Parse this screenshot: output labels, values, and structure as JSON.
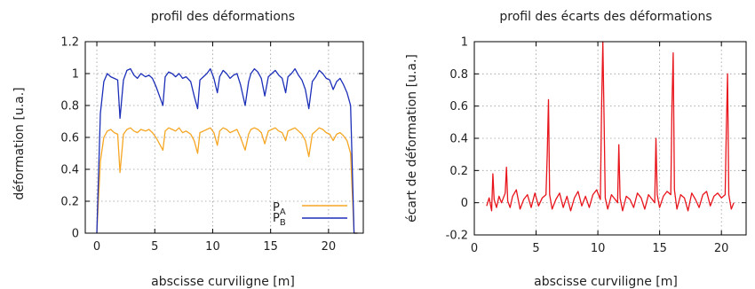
{
  "chart_data": [
    {
      "type": "line",
      "title": "profil des déformations",
      "xlabel": "abscisse curviligne [m]",
      "ylabel": "déformation [u.a.]",
      "xlim": [
        -1,
        23
      ],
      "ylim": [
        0,
        1.2
      ],
      "xticks": [
        0,
        5,
        10,
        15,
        20
      ],
      "yticks": [
        0,
        0.2,
        0.4,
        0.6,
        0.8,
        1,
        1.2
      ],
      "ytick_labels": [
        "0",
        "0.2",
        "0.4",
        "0.6",
        "0.8",
        "1",
        "1.2"
      ],
      "grid": true,
      "legend": "bottom-right",
      "series": [
        {
          "name": "P",
          "subscript": "A",
          "color": "#f5a623",
          "x": [
            0.0,
            0.3,
            0.6,
            0.9,
            1.2,
            1.5,
            1.8,
            2.0,
            2.3,
            2.6,
            2.9,
            3.2,
            3.5,
            3.8,
            4.2,
            4.5,
            4.8,
            5.1,
            5.4,
            5.7,
            5.9,
            6.2,
            6.5,
            6.8,
            7.1,
            7.4,
            7.7,
            8.1,
            8.4,
            8.7,
            8.9,
            9.2,
            9.5,
            9.8,
            10.1,
            10.4,
            10.6,
            10.9,
            11.2,
            11.5,
            11.8,
            12.1,
            12.4,
            12.8,
            13.1,
            13.3,
            13.6,
            13.9,
            14.2,
            14.5,
            14.8,
            15.1,
            15.4,
            15.7,
            16.0,
            16.3,
            16.5,
            16.8,
            17.1,
            17.4,
            17.7,
            18.0,
            18.3,
            18.6,
            18.9,
            19.2,
            19.5,
            19.8,
            20.1,
            20.4,
            20.7,
            21.0,
            21.3,
            21.6,
            21.9,
            22.2,
            22.5
          ],
          "y": [
            0.0,
            0.45,
            0.6,
            0.64,
            0.65,
            0.63,
            0.62,
            0.38,
            0.62,
            0.65,
            0.66,
            0.64,
            0.63,
            0.65,
            0.64,
            0.65,
            0.63,
            0.6,
            0.56,
            0.52,
            0.64,
            0.66,
            0.65,
            0.64,
            0.66,
            0.63,
            0.64,
            0.62,
            0.58,
            0.5,
            0.63,
            0.64,
            0.65,
            0.66,
            0.63,
            0.55,
            0.64,
            0.66,
            0.65,
            0.63,
            0.64,
            0.65,
            0.6,
            0.52,
            0.62,
            0.65,
            0.66,
            0.65,
            0.63,
            0.56,
            0.64,
            0.65,
            0.66,
            0.64,
            0.63,
            0.58,
            0.64,
            0.65,
            0.66,
            0.64,
            0.62,
            0.58,
            0.48,
            0.62,
            0.64,
            0.66,
            0.65,
            0.63,
            0.62,
            0.58,
            0.62,
            0.63,
            0.61,
            0.58,
            0.5,
            0.0,
            0.0
          ]
        },
        {
          "name": "P",
          "subscript": "B",
          "color": "#1c2fb8",
          "x": [
            0.0,
            0.3,
            0.6,
            0.9,
            1.2,
            1.5,
            1.8,
            2.0,
            2.3,
            2.6,
            2.9,
            3.2,
            3.5,
            3.8,
            4.2,
            4.5,
            4.8,
            5.1,
            5.4,
            5.7,
            5.9,
            6.2,
            6.5,
            6.8,
            7.1,
            7.4,
            7.7,
            8.1,
            8.4,
            8.7,
            8.9,
            9.2,
            9.5,
            9.8,
            10.1,
            10.4,
            10.6,
            10.9,
            11.2,
            11.5,
            11.8,
            12.1,
            12.4,
            12.8,
            13.1,
            13.3,
            13.6,
            13.9,
            14.2,
            14.5,
            14.8,
            15.1,
            15.4,
            15.7,
            16.0,
            16.3,
            16.5,
            16.8,
            17.1,
            17.4,
            17.7,
            18.0,
            18.3,
            18.6,
            18.9,
            19.2,
            19.5,
            19.8,
            20.1,
            20.4,
            20.7,
            21.0,
            21.3,
            21.6,
            21.9,
            22.2,
            22.5
          ],
          "y": [
            0.0,
            0.75,
            0.95,
            1.0,
            0.98,
            0.97,
            0.96,
            0.72,
            0.96,
            1.02,
            1.03,
            0.99,
            0.97,
            1.0,
            0.98,
            0.99,
            0.97,
            0.92,
            0.86,
            0.8,
            0.98,
            1.01,
            1.0,
            0.98,
            1.0,
            0.97,
            0.98,
            0.95,
            0.86,
            0.78,
            0.96,
            0.98,
            1.0,
            1.03,
            0.97,
            0.88,
            0.98,
            1.02,
            1.0,
            0.97,
            0.99,
            1.0,
            0.93,
            0.8,
            0.95,
            1.0,
            1.03,
            1.01,
            0.97,
            0.86,
            0.98,
            1.0,
            1.02,
            0.99,
            0.97,
            0.88,
            0.98,
            1.0,
            1.03,
            0.99,
            0.96,
            0.9,
            0.78,
            0.95,
            0.98,
            1.02,
            1.0,
            0.97,
            0.96,
            0.9,
            0.95,
            0.97,
            0.93,
            0.88,
            0.8,
            0.0,
            0.0
          ]
        }
      ]
    },
    {
      "type": "line",
      "title": "profil des écarts des déformations",
      "xlabel": "abscisse curviligne [m]",
      "ylabel": "écart de déformation [u.a.]",
      "xlim": [
        0,
        22
      ],
      "ylim": [
        -0.2,
        1
      ],
      "xticks": [
        0,
        5,
        10,
        15,
        20
      ],
      "yticks": [
        -0.2,
        0,
        0.2,
        0.4,
        0.6,
        0.8,
        1
      ],
      "ytick_labels": [
        "-0.2",
        "0",
        "0.2",
        "0.4",
        "0.6",
        "0.8",
        "1"
      ],
      "grid": true,
      "series": [
        {
          "color": "#e8141b",
          "x": [
            1.0,
            1.2,
            1.4,
            1.5,
            1.6,
            1.8,
            2.0,
            2.2,
            2.5,
            2.6,
            2.7,
            2.9,
            3.1,
            3.4,
            3.7,
            4.0,
            4.3,
            4.6,
            4.9,
            5.2,
            5.5,
            5.8,
            5.9,
            6.0,
            6.1,
            6.3,
            6.6,
            6.9,
            7.2,
            7.5,
            7.8,
            8.1,
            8.4,
            8.7,
            9.0,
            9.3,
            9.6,
            9.9,
            10.2,
            10.3,
            10.4,
            10.5,
            10.6,
            10.8,
            11.1,
            11.4,
            11.6,
            11.7,
            11.8,
            12.0,
            12.3,
            12.6,
            12.9,
            13.2,
            13.5,
            13.8,
            14.1,
            14.4,
            14.6,
            14.7,
            14.8,
            15.0,
            15.3,
            15.6,
            15.9,
            16.0,
            16.1,
            16.2,
            16.4,
            16.7,
            17.0,
            17.3,
            17.6,
            17.9,
            18.2,
            18.5,
            18.8,
            19.1,
            19.4,
            19.7,
            20.0,
            20.3,
            20.4,
            20.5,
            20.6,
            20.8,
            21.0
          ],
          "y": [
            -0.02,
            0.03,
            -0.05,
            0.18,
            0.02,
            -0.03,
            0.04,
            0.0,
            0.06,
            0.22,
            0.01,
            -0.03,
            0.04,
            0.08,
            -0.04,
            0.02,
            0.05,
            -0.03,
            0.06,
            -0.02,
            0.03,
            0.05,
            0.3,
            0.64,
            0.05,
            -0.04,
            0.02,
            0.06,
            -0.03,
            0.04,
            -0.05,
            0.03,
            0.07,
            -0.02,
            0.04,
            -0.03,
            0.05,
            0.08,
            0.02,
            0.6,
            1.0,
            0.55,
            0.03,
            -0.04,
            0.05,
            0.02,
            0.0,
            0.36,
            0.03,
            -0.05,
            0.04,
            0.02,
            -0.03,
            0.06,
            0.03,
            -0.04,
            0.05,
            0.02,
            0.0,
            0.4,
            0.05,
            -0.03,
            0.04,
            0.07,
            0.05,
            0.6,
            0.93,
            0.08,
            -0.04,
            0.05,
            0.03,
            -0.05,
            0.06,
            0.02,
            -0.03,
            0.05,
            0.07,
            -0.02,
            0.04,
            0.06,
            0.03,
            0.05,
            0.45,
            0.8,
            0.05,
            -0.04,
            0.0
          ]
        }
      ]
    }
  ]
}
